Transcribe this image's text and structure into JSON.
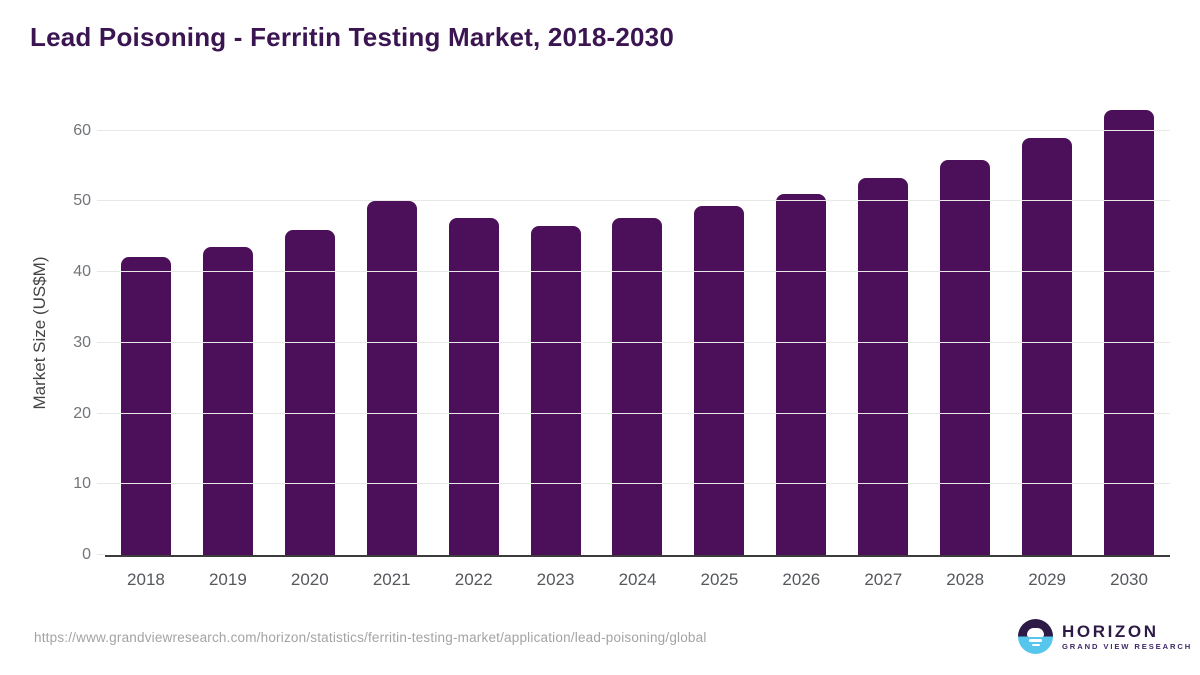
{
  "title": "Lead Poisoning - Ferritin Testing Market, 2018-2030",
  "chart_data": {
    "type": "bar",
    "title": "Lead Poisoning - Ferritin Testing Market, 2018-2030",
    "categories": [
      "2018",
      "2019",
      "2020",
      "2021",
      "2022",
      "2023",
      "2024",
      "2025",
      "2026",
      "2027",
      "2028",
      "2029",
      "2030"
    ],
    "values": [
      42.1,
      43.6,
      45.9,
      50.0,
      47.7,
      46.5,
      47.7,
      49.4,
      51.1,
      53.3,
      55.9,
      59.0,
      62.9
    ],
    "xlabel": "",
    "ylabel": "Market Size (US$M)",
    "yticks": [
      0,
      10,
      20,
      30,
      40,
      50,
      60
    ],
    "ylim": [
      0,
      63.2
    ],
    "grid": true,
    "legend": false
  },
  "colors": {
    "title_text": "#3b1551",
    "bar_fill": "#4b1059",
    "gridline": "#e8e8e8",
    "axis_line": "#3c3c3c",
    "y_tick_label": "#71757a",
    "x_tick_label": "#55585d",
    "footer_text": "#a3a3a3",
    "logo_purple": "#2e1a47",
    "logo_blue": "#56c6ed",
    "logo_subtitle": "#3f2766"
  },
  "footer": {
    "url": "https://www.grandviewresearch.com/horizon/statistics/ferritin-testing-market/application/lead-poisoning/global"
  },
  "logo": {
    "name": "HORIZON",
    "subtitle": "GRAND VIEW RESEARCH"
  }
}
